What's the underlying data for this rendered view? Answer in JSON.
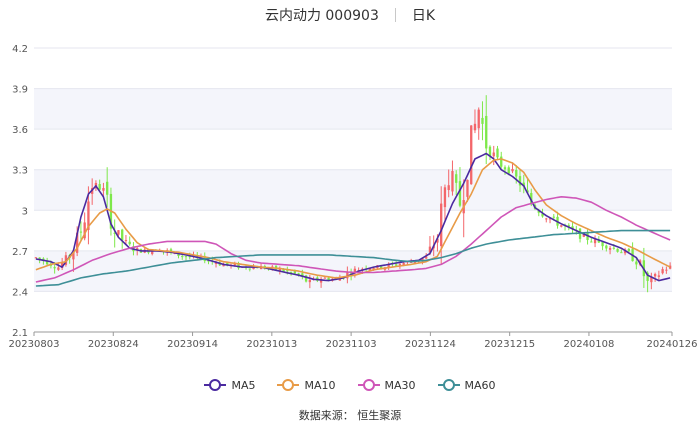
{
  "header": {
    "title": "云内动力 000903",
    "period": "日K"
  },
  "source": "数据来源：  恒生聚源",
  "chart_data": {
    "type": "candlestick",
    "ylim": [
      2.1,
      4.2
    ],
    "yticks": [
      "4.2",
      "3.9",
      "3.6",
      "3.3",
      "3",
      "2.7",
      "2.4",
      "2.1"
    ],
    "xticks": [
      "20230803",
      "20230824",
      "20230914",
      "20231013",
      "20231103",
      "20231124",
      "20231215",
      "20240108",
      "20240126"
    ],
    "colors": {
      "up": "#f3666a",
      "down": "#7ee84a"
    },
    "legend": [
      {
        "name": "MA5",
        "color": "#4a2aa0"
      },
      {
        "name": "MA10",
        "color": "#e89b47"
      },
      {
        "name": "MA30",
        "color": "#cf56b8"
      },
      {
        "name": "MA60",
        "color": "#3e8f97"
      }
    ],
    "ohlc_knots": [
      [
        0,
        2.65
      ],
      [
        3,
        2.62
      ],
      [
        6,
        2.58
      ],
      [
        9,
        2.66
      ],
      [
        12,
        2.85
      ],
      [
        15,
        3.2
      ],
      [
        18,
        3.15
      ],
      [
        21,
        2.85
      ],
      [
        24,
        2.75
      ],
      [
        27,
        2.7
      ],
      [
        30,
        2.7
      ],
      [
        33,
        2.72
      ],
      [
        36,
        2.68
      ],
      [
        40,
        2.66
      ],
      [
        45,
        2.64
      ],
      [
        50,
        2.6
      ],
      [
        55,
        2.58
      ],
      [
        60,
        2.58
      ],
      [
        65,
        2.56
      ],
      [
        70,
        2.52
      ],
      [
        73,
        2.46
      ],
      [
        76,
        2.5
      ],
      [
        80,
        2.49
      ],
      [
        84,
        2.55
      ],
      [
        88,
        2.58
      ],
      [
        92,
        2.58
      ],
      [
        96,
        2.6
      ],
      [
        100,
        2.62
      ],
      [
        104,
        2.65
      ],
      [
        107,
        2.8
      ],
      [
        110,
        3.3
      ],
      [
        113,
        3.05
      ],
      [
        116,
        3.5
      ],
      [
        118,
        3.75
      ],
      [
        120,
        3.5
      ],
      [
        123,
        3.35
      ],
      [
        126,
        3.3
      ],
      [
        129,
        3.2
      ],
      [
        132,
        3.05
      ],
      [
        135,
        2.98
      ],
      [
        138,
        2.92
      ],
      [
        142,
        2.86
      ],
      [
        146,
        2.8
      ],
      [
        150,
        2.76
      ],
      [
        154,
        2.72
      ],
      [
        158,
        2.68
      ],
      [
        161,
        2.6
      ],
      [
        163,
        2.45
      ],
      [
        165,
        2.5
      ],
      [
        167,
        2.56
      ],
      [
        169,
        2.58
      ]
    ],
    "ma5": [
      [
        0,
        2.64
      ],
      [
        4,
        2.62
      ],
      [
        7,
        2.58
      ],
      [
        10,
        2.7
      ],
      [
        12,
        2.95
      ],
      [
        14,
        3.12
      ],
      [
        16,
        3.18
      ],
      [
        18,
        3.1
      ],
      [
        20,
        2.9
      ],
      [
        22,
        2.8
      ],
      [
        25,
        2.72
      ],
      [
        28,
        2.7
      ],
      [
        32,
        2.7
      ],
      [
        36,
        2.69
      ],
      [
        40,
        2.67
      ],
      [
        45,
        2.64
      ],
      [
        50,
        2.6
      ],
      [
        55,
        2.58
      ],
      [
        60,
        2.58
      ],
      [
        65,
        2.55
      ],
      [
        70,
        2.52
      ],
      [
        74,
        2.49
      ],
      [
        78,
        2.48
      ],
      [
        82,
        2.5
      ],
      [
        86,
        2.55
      ],
      [
        90,
        2.58
      ],
      [
        94,
        2.6
      ],
      [
        98,
        2.62
      ],
      [
        102,
        2.63
      ],
      [
        105,
        2.68
      ],
      [
        108,
        2.85
      ],
      [
        111,
        3.05
      ],
      [
        114,
        3.2
      ],
      [
        117,
        3.38
      ],
      [
        120,
        3.42
      ],
      [
        122,
        3.38
      ],
      [
        124,
        3.3
      ],
      [
        127,
        3.25
      ],
      [
        130,
        3.18
      ],
      [
        133,
        3.02
      ],
      [
        136,
        2.96
      ],
      [
        140,
        2.9
      ],
      [
        144,
        2.85
      ],
      [
        148,
        2.8
      ],
      [
        152,
        2.76
      ],
      [
        156,
        2.72
      ],
      [
        160,
        2.65
      ],
      [
        163,
        2.52
      ],
      [
        166,
        2.48
      ],
      [
        169,
        2.5
      ]
    ],
    "ma10": [
      [
        0,
        2.56
      ],
      [
        4,
        2.6
      ],
      [
        8,
        2.62
      ],
      [
        11,
        2.72
      ],
      [
        14,
        2.88
      ],
      [
        17,
        2.98
      ],
      [
        19,
        3.01
      ],
      [
        21,
        2.98
      ],
      [
        24,
        2.86
      ],
      [
        27,
        2.76
      ],
      [
        30,
        2.71
      ],
      [
        34,
        2.7
      ],
      [
        38,
        2.69
      ],
      [
        42,
        2.67
      ],
      [
        46,
        2.65
      ],
      [
        50,
        2.62
      ],
      [
        55,
        2.6
      ],
      [
        60,
        2.58
      ],
      [
        65,
        2.57
      ],
      [
        70,
        2.55
      ],
      [
        75,
        2.52
      ],
      [
        80,
        2.5
      ],
      [
        85,
        2.52
      ],
      [
        90,
        2.56
      ],
      [
        95,
        2.58
      ],
      [
        100,
        2.6
      ],
      [
        104,
        2.62
      ],
      [
        107,
        2.66
      ],
      [
        110,
        2.82
      ],
      [
        113,
        2.98
      ],
      [
        116,
        3.12
      ],
      [
        119,
        3.3
      ],
      [
        122,
        3.37
      ],
      [
        124,
        3.38
      ],
      [
        127,
        3.35
      ],
      [
        130,
        3.28
      ],
      [
        133,
        3.15
      ],
      [
        136,
        3.04
      ],
      [
        140,
        2.96
      ],
      [
        144,
        2.9
      ],
      [
        148,
        2.85
      ],
      [
        152,
        2.8
      ],
      [
        156,
        2.76
      ],
      [
        160,
        2.71
      ],
      [
        164,
        2.65
      ],
      [
        169,
        2.58
      ]
    ],
    "ma30": [
      [
        0,
        2.47
      ],
      [
        5,
        2.5
      ],
      [
        10,
        2.56
      ],
      [
        15,
        2.63
      ],
      [
        20,
        2.68
      ],
      [
        25,
        2.72
      ],
      [
        30,
        2.75
      ],
      [
        35,
        2.77
      ],
      [
        40,
        2.77
      ],
      [
        45,
        2.77
      ],
      [
        48,
        2.75
      ],
      [
        52,
        2.68
      ],
      [
        56,
        2.63
      ],
      [
        60,
        2.61
      ],
      [
        65,
        2.6
      ],
      [
        70,
        2.59
      ],
      [
        75,
        2.57
      ],
      [
        80,
        2.55
      ],
      [
        85,
        2.54
      ],
      [
        90,
        2.54
      ],
      [
        95,
        2.55
      ],
      [
        100,
        2.56
      ],
      [
        104,
        2.57
      ],
      [
        108,
        2.6
      ],
      [
        112,
        2.66
      ],
      [
        116,
        2.75
      ],
      [
        120,
        2.85
      ],
      [
        124,
        2.95
      ],
      [
        128,
        3.02
      ],
      [
        132,
        3.05
      ],
      [
        136,
        3.08
      ],
      [
        140,
        3.1
      ],
      [
        144,
        3.09
      ],
      [
        148,
        3.06
      ],
      [
        152,
        3.0
      ],
      [
        156,
        2.95
      ],
      [
        160,
        2.89
      ],
      [
        164,
        2.84
      ],
      [
        169,
        2.78
      ]
    ],
    "ma60": [
      [
        0,
        2.44
      ],
      [
        6,
        2.45
      ],
      [
        12,
        2.5
      ],
      [
        18,
        2.53
      ],
      [
        24,
        2.55
      ],
      [
        30,
        2.58
      ],
      [
        36,
        2.61
      ],
      [
        42,
        2.63
      ],
      [
        48,
        2.65
      ],
      [
        54,
        2.66
      ],
      [
        60,
        2.67
      ],
      [
        66,
        2.67
      ],
      [
        72,
        2.67
      ],
      [
        78,
        2.67
      ],
      [
        84,
        2.66
      ],
      [
        90,
        2.65
      ],
      [
        96,
        2.63
      ],
      [
        100,
        2.62
      ],
      [
        104,
        2.63
      ],
      [
        108,
        2.65
      ],
      [
        112,
        2.68
      ],
      [
        116,
        2.72
      ],
      [
        120,
        2.75
      ],
      [
        126,
        2.78
      ],
      [
        132,
        2.8
      ],
      [
        138,
        2.82
      ],
      [
        144,
        2.83
      ],
      [
        150,
        2.84
      ],
      [
        156,
        2.85
      ],
      [
        162,
        2.85
      ],
      [
        169,
        2.85
      ]
    ]
  }
}
